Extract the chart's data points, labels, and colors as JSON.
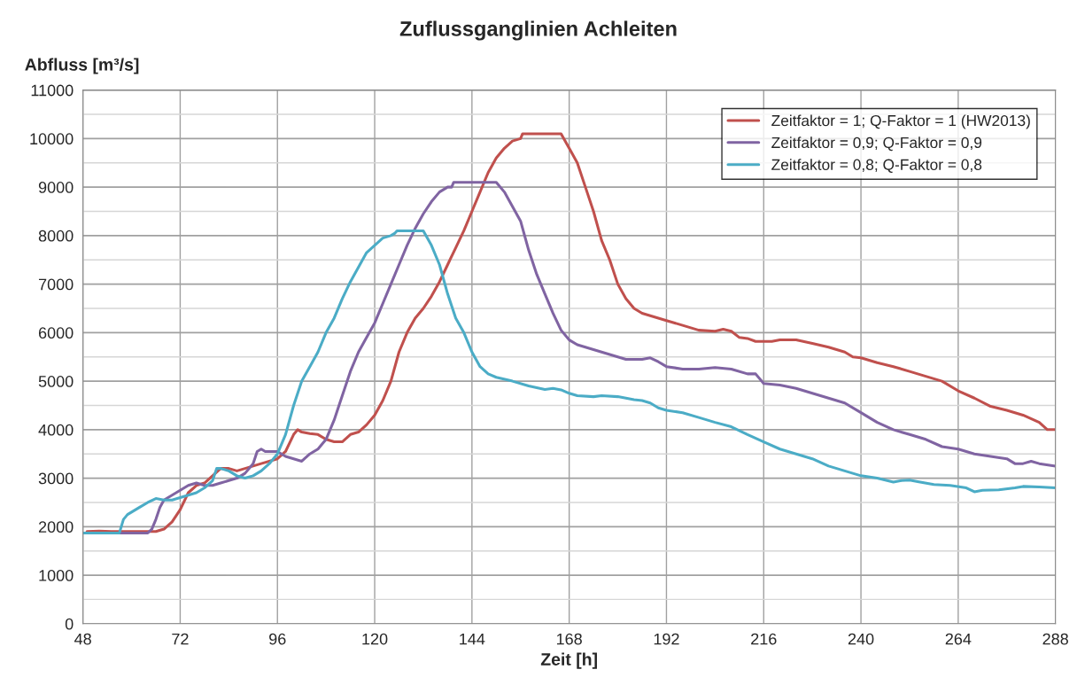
{
  "chart_data": {
    "type": "line",
    "title": "Zuflussganglinien Achleiten",
    "xlabel": "Zeit [h]",
    "ylabel": "Abfluss [m³/s]",
    "xlim": [
      48,
      288
    ],
    "xticks": [
      48,
      72,
      96,
      120,
      144,
      168,
      192,
      216,
      240,
      264,
      288
    ],
    "ylim": [
      0,
      11000
    ],
    "yticks": [
      0,
      {
        "value": 500,
        "label": null
      },
      1000,
      {
        "value": 1500,
        "label": null
      },
      2000,
      {
        "value": 2500,
        "label": null
      },
      3000,
      {
        "value": 3500,
        "label": null
      },
      4000,
      {
        "value": 4500,
        "label": null
      },
      5000,
      {
        "value": 5500,
        "label": null
      },
      6000,
      {
        "value": 6500,
        "label": null
      },
      7000,
      {
        "value": 7500,
        "label": null
      },
      8000,
      {
        "value": 8500,
        "label": null
      },
      9000,
      {
        "value": 9500,
        "label": null
      },
      10000,
      {
        "value": 10500,
        "label": null
      },
      11000
    ],
    "grid": true,
    "legend": "top right",
    "marker": "none",
    "line_style": "solid",
    "series": [
      {
        "name": "Zeitfaktor = 1; Q-Faktor = 1 (HW2013)",
        "color": "#c0504d",
        "x": [
          49,
          52,
          55,
          58,
          62,
          66,
          68,
          70,
          72,
          74,
          76,
          78,
          80,
          82,
          84,
          86,
          88,
          92,
          96,
          98,
          100,
          101,
          102,
          104,
          106,
          108,
          110,
          112,
          114,
          116,
          118,
          120,
          122,
          124,
          126,
          128,
          130,
          132,
          134,
          136,
          138,
          140,
          142,
          144,
          146,
          148,
          150,
          152,
          154,
          156,
          156.5,
          166,
          168,
          170,
          172,
          174,
          176,
          178,
          180,
          182,
          184,
          186,
          188,
          192,
          196,
          200,
          204,
          206,
          208,
          210,
          212,
          214,
          218,
          220,
          224,
          228,
          232,
          236,
          238,
          240,
          244,
          248,
          252,
          256,
          260,
          264,
          268,
          272,
          276,
          280,
          284,
          286,
          288
        ],
        "values": [
          1900,
          1910,
          1900,
          1900,
          1900,
          1900,
          1950,
          2100,
          2350,
          2700,
          2850,
          2900,
          3050,
          3200,
          3200,
          3150,
          3200,
          3300,
          3400,
          3550,
          3900,
          4000,
          3950,
          3920,
          3900,
          3800,
          3750,
          3750,
          3900,
          3950,
          4100,
          4300,
          4600,
          5000,
          5600,
          6000,
          6300,
          6500,
          6750,
          7050,
          7400,
          7750,
          8100,
          8500,
          8900,
          9300,
          9600,
          9800,
          9950,
          10000,
          10100,
          10100,
          9800,
          9500,
          9000,
          8500,
          7900,
          7500,
          7000,
          6700,
          6500,
          6400,
          6350,
          6250,
          6150,
          6050,
          6030,
          6070,
          6030,
          5900,
          5880,
          5820,
          5820,
          5850,
          5850,
          5780,
          5700,
          5600,
          5500,
          5480,
          5380,
          5300,
          5200,
          5100,
          5000,
          4800,
          4650,
          4480,
          4400,
          4300,
          4150,
          4000,
          4000
        ]
      },
      {
        "name": "Zeitfaktor = 0,9; Q-Faktor = 0,9",
        "color": "#8064a2",
        "x": [
          48,
          64,
          65,
          66,
          67,
          68,
          70,
          72,
          74,
          76,
          78,
          80,
          82,
          84,
          86,
          88,
          90,
          91,
          92,
          93,
          96,
          98,
          100,
          102,
          104,
          106,
          108,
          110,
          112,
          114,
          116,
          118,
          120,
          122,
          124,
          126,
          128,
          130,
          132,
          134,
          136,
          138,
          139,
          139.5,
          150,
          152,
          154,
          156,
          158,
          160,
          162,
          164,
          166,
          168,
          170,
          174,
          178,
          182,
          186,
          188,
          190,
          192,
          196,
          200,
          204,
          208,
          212,
          214,
          216,
          220,
          224,
          228,
          232,
          236,
          240,
          244,
          248,
          252,
          256,
          260,
          264,
          268,
          272,
          276,
          278,
          280,
          282,
          284,
          288
        ],
        "values": [
          1870,
          1870,
          1950,
          2150,
          2400,
          2550,
          2650,
          2750,
          2850,
          2900,
          2850,
          2850,
          2900,
          2950,
          3000,
          3100,
          3300,
          3550,
          3600,
          3550,
          3550,
          3450,
          3400,
          3350,
          3500,
          3600,
          3800,
          4200,
          4700,
          5200,
          5600,
          5900,
          6200,
          6600,
          7000,
          7400,
          7800,
          8150,
          8450,
          8700,
          8900,
          9000,
          9000,
          9100,
          9100,
          8900,
          8600,
          8300,
          7700,
          7200,
          6800,
          6400,
          6050,
          5850,
          5750,
          5650,
          5550,
          5450,
          5450,
          5480,
          5400,
          5300,
          5250,
          5250,
          5280,
          5250,
          5150,
          5150,
          4950,
          4920,
          4850,
          4750,
          4650,
          4550,
          4350,
          4150,
          4000,
          3900,
          3800,
          3650,
          3600,
          3500,
          3450,
          3400,
          3300,
          3300,
          3350,
          3300,
          3250
        ]
      },
      {
        "name": "Zeitfaktor = 0,8; Q-Faktor = 0,8",
        "color": "#4bacc6",
        "x": [
          48,
          57,
          58,
          59,
          60,
          62,
          64,
          66,
          68,
          70,
          72,
          74,
          76,
          78,
          80,
          81,
          82,
          84,
          86,
          88,
          90,
          92,
          94,
          96,
          98,
          100,
          102,
          104,
          106,
          108,
          110,
          112,
          114,
          116,
          118,
          120,
          122,
          124,
          125,
          125.5,
          132,
          134,
          136,
          138,
          140,
          142,
          144,
          146,
          148,
          150,
          154,
          158,
          162,
          164,
          166,
          168,
          170,
          174,
          176,
          180,
          184,
          186,
          188,
          190,
          192,
          196,
          200,
          204,
          208,
          212,
          216,
          220,
          224,
          228,
          232,
          236,
          240,
          244,
          248,
          250,
          252,
          254,
          258,
          262,
          266,
          268,
          270,
          274,
          278,
          280,
          284,
          288
        ],
        "values": [
          1870,
          1870,
          2150,
          2250,
          2300,
          2400,
          2500,
          2580,
          2550,
          2550,
          2600,
          2650,
          2700,
          2800,
          2950,
          3200,
          3200,
          3150,
          3050,
          3000,
          3050,
          3150,
          3300,
          3500,
          3900,
          4500,
          5000,
          5300,
          5600,
          6000,
          6300,
          6700,
          7050,
          7350,
          7650,
          7800,
          7950,
          8000,
          8050,
          8100,
          8100,
          7800,
          7400,
          6800,
          6300,
          6000,
          5600,
          5300,
          5150,
          5080,
          5000,
          4900,
          4830,
          4850,
          4820,
          4750,
          4700,
          4680,
          4700,
          4680,
          4620,
          4600,
          4550,
          4450,
          4400,
          4350,
          4250,
          4150,
          4060,
          3900,
          3750,
          3600,
          3500,
          3400,
          3250,
          3150,
          3050,
          3000,
          2920,
          2950,
          2960,
          2930,
          2870,
          2850,
          2800,
          2720,
          2750,
          2760,
          2800,
          2830,
          2820,
          2800
        ]
      }
    ]
  }
}
